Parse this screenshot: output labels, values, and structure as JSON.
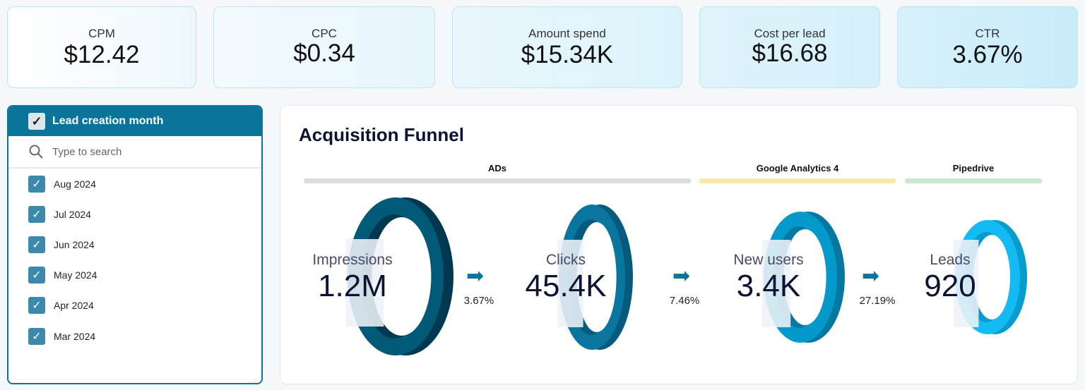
{
  "kpis": [
    {
      "label": "CPM",
      "value": "$12.42"
    },
    {
      "label": "CPC",
      "value": "$0.34"
    },
    {
      "label": "Amount spend",
      "value": "$15.34K"
    },
    {
      "label": "Cost per lead",
      "value": "$16.68"
    },
    {
      "label": "CTR",
      "value": "3.67%"
    }
  ],
  "filter": {
    "title": "Lead creation month",
    "search_placeholder": "Type to search",
    "items": [
      "Aug 2024",
      "Jul 2024",
      "Jun 2024",
      "May 2024",
      "Apr 2024",
      "Mar 2024"
    ],
    "all_checked": true,
    "header_color": "#0a749b"
  },
  "funnel": {
    "title": "Acquisition Funnel",
    "sources": [
      {
        "label": "ADs",
        "color": "#dcdcdc"
      },
      {
        "label": "Google Analytics 4",
        "color": "#fbe7a8"
      },
      {
        "label": "Pipedrive",
        "color": "#c9e8cf"
      }
    ],
    "stages": [
      {
        "label": "Impressions",
        "value": "1.2M",
        "color": "#005a78",
        "shade": "#00384f"
      },
      {
        "label": "Clicks",
        "value": "45.4K",
        "color": "#0a76a0",
        "shade": "#065a7c"
      },
      {
        "label": "New users",
        "value": "3.4K",
        "color": "#0399cb",
        "shade": "#06789f"
      },
      {
        "label": "Leads",
        "value": "920",
        "color": "#14baf3",
        "shade": "#079cce"
      }
    ],
    "conversions": [
      "3.67%",
      "7.46%",
      "27.19%"
    ]
  }
}
